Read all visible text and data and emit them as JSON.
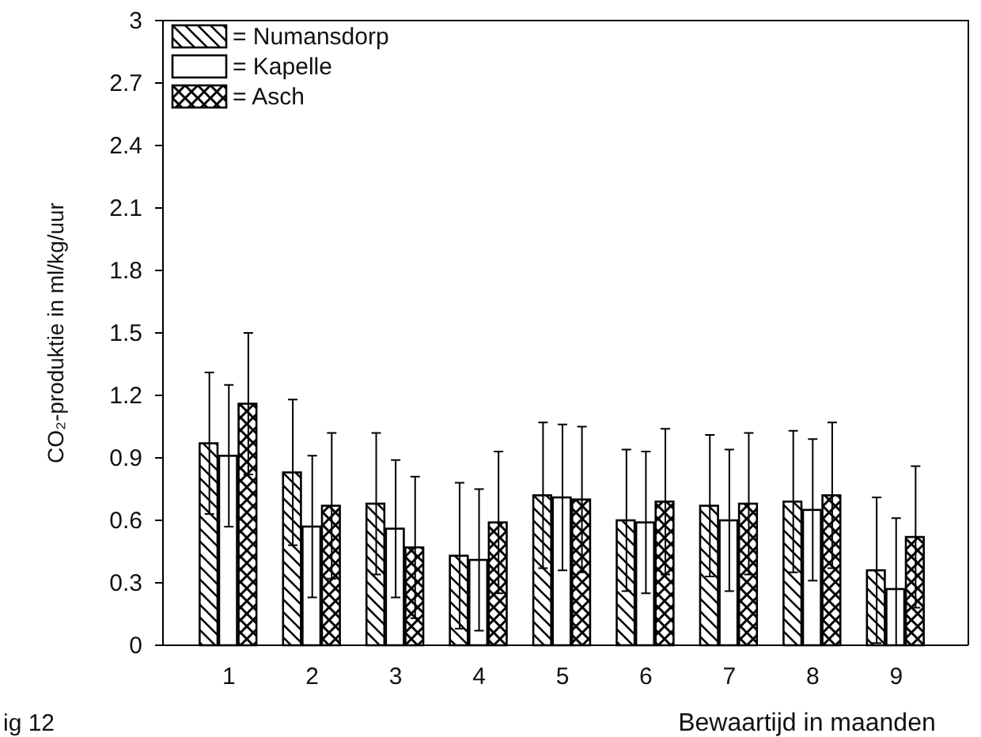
{
  "chart_data": {
    "type": "bar",
    "xlabel": "Bewaartijd in maanden",
    "ylabel": "CO₂-produktie in ml/kg/uur",
    "categories": [
      "1",
      "2",
      "3",
      "4",
      "5",
      "6",
      "7",
      "8",
      "9"
    ],
    "ylim": [
      0,
      3
    ],
    "yticks": [
      0,
      0.3,
      0.6,
      0.9,
      1.2,
      1.5,
      1.8,
      2.1,
      2.4,
      2.7,
      3
    ],
    "grid": false,
    "legend": "top left",
    "series": [
      {
        "name": "= Numansdorp",
        "color": "#000000",
        "values": [
          0.97,
          0.83,
          0.68,
          0.43,
          0.72,
          0.6,
          0.67,
          0.69,
          0.36
        ],
        "errors": [
          0.34,
          0.35,
          0.34,
          0.35,
          0.35,
          0.34,
          0.34,
          0.34,
          0.35
        ]
      },
      {
        "name": "= Kapelle",
        "color": "#000000",
        "values": [
          0.91,
          0.57,
          0.56,
          0.41,
          0.71,
          0.59,
          0.6,
          0.65,
          0.27
        ],
        "errors": [
          0.34,
          0.34,
          0.33,
          0.34,
          0.35,
          0.34,
          0.34,
          0.34,
          [
            0,
            0.61
          ]
        ]
      },
      {
        "name": "= Asch",
        "color": "#000000",
        "values": [
          1.16,
          0.67,
          0.47,
          0.59,
          0.7,
          0.69,
          0.68,
          0.72,
          0.52
        ],
        "errors": [
          0.34,
          0.35,
          0.34,
          0.34,
          0.35,
          0.35,
          0.34,
          0.35,
          0.34
        ]
      }
    ],
    "annotations": [
      "ig 12"
    ]
  }
}
